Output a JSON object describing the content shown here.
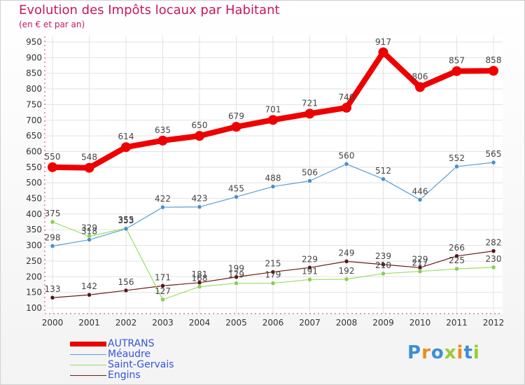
{
  "header": {
    "title": "Evolution des Impôts locaux par Habitant",
    "subtitle": "(en € et par an)"
  },
  "logo": {
    "text": "Proxiti"
  },
  "chart_data": {
    "type": "line",
    "title": "Evolution des Impôts locaux par Habitant",
    "subtitle": "(en € et par an)",
    "xlabel": "",
    "ylabel": "",
    "x": [
      "2000",
      "2001",
      "2002",
      "2003",
      "2004",
      "2005",
      "2006",
      "2007",
      "2008",
      "2009",
      "2010",
      "2011",
      "2012"
    ],
    "ylim": [
      100,
      950
    ],
    "yticks": [
      100,
      150,
      200,
      250,
      300,
      350,
      400,
      450,
      500,
      550,
      600,
      650,
      700,
      750,
      800,
      850,
      900,
      950
    ],
    "grid": true,
    "legend_position": "bottom-left",
    "series": [
      {
        "name": "AUTRANS",
        "color": "#ee0000",
        "values": [
          550,
          548,
          614,
          635,
          650,
          679,
          701,
          721,
          740,
          917,
          806,
          857,
          858
        ],
        "labels": [
          "550",
          "548",
          "614",
          "635",
          "650",
          "679",
          "701",
          "721",
          "740",
          "917",
          "806",
          "857",
          "858"
        ]
      },
      {
        "name": "Méaudre",
        "color": "#5a9fd4",
        "values": [
          298,
          318,
          353,
          422,
          423,
          455,
          488,
          506,
          560,
          512,
          446,
          552,
          565
        ],
        "labels": [
          "298",
          "318",
          "353",
          "422",
          "423",
          "455",
          "488",
          "506",
          "560",
          "512",
          "446",
          "552",
          "565"
        ]
      },
      {
        "name": "Saint-Gervais",
        "color": "#99dd66",
        "values": [
          375,
          329,
          355,
          127,
          168,
          179,
          179,
          191,
          192,
          210,
          217,
          225,
          230
        ],
        "labels": [
          "375",
          "329",
          "355",
          "127",
          "168",
          "179",
          "179",
          "191",
          "192",
          "210",
          "217",
          "225",
          "230"
        ]
      },
      {
        "name": "Engins",
        "color": "#6b1a1a",
        "values": [
          133,
          142,
          156,
          171,
          181,
          199,
          215,
          229,
          249,
          239,
          229,
          266,
          282
        ],
        "labels": [
          "133",
          "142",
          "156",
          "171",
          "181",
          "199",
          "215",
          "229",
          "249",
          "239",
          "229",
          "266",
          "282"
        ]
      }
    ]
  }
}
